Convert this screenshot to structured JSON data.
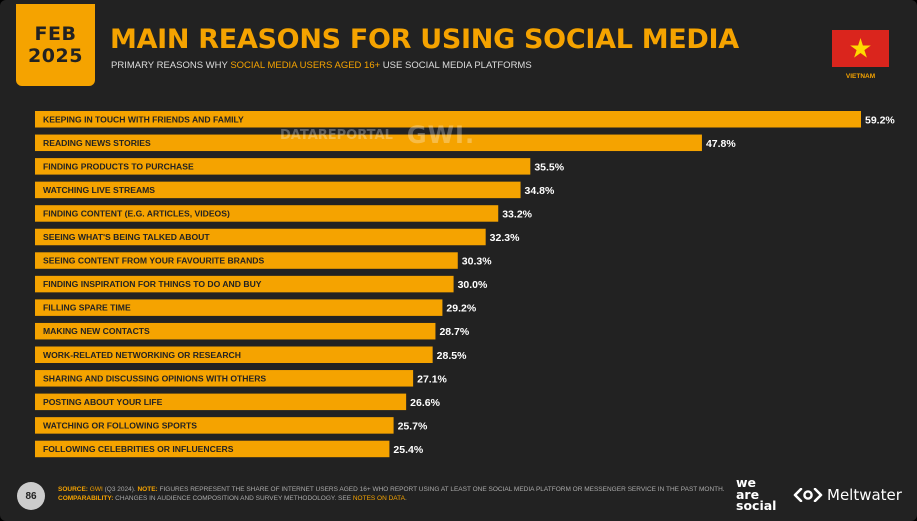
{
  "badge": {
    "month": "FEB",
    "year": "2025"
  },
  "title": "MAIN REASONS FOR USING SOCIAL MEDIA",
  "subtitle": {
    "pre": "PRIMARY REASONS WHY ",
    "highlight": "SOCIAL MEDIA USERS AGED 16+",
    "post": " USE SOCIAL MEDIA PLATFORMS"
  },
  "country": {
    "name": "VIETNAM",
    "flag_icon": "vietnam-flag-icon"
  },
  "watermark": {
    "left": "DATAREPORTAL",
    "right": "GWI."
  },
  "colors": {
    "accent": "#f5a300",
    "background": "#222222",
    "bar_text": "#222222",
    "value_text": "#ffffff"
  },
  "chart_data": {
    "type": "bar",
    "orientation": "horizontal",
    "categories": [
      "KEEPING IN TOUCH WITH FRIENDS AND FAMILY",
      "READING NEWS STORIES",
      "FINDING PRODUCTS TO PURCHASE",
      "WATCHING LIVE STREAMS",
      "FINDING CONTENT (E.G. ARTICLES, VIDEOS)",
      "SEEING WHAT'S BEING TALKED ABOUT",
      "SEEING CONTENT FROM YOUR FAVOURITE BRANDS",
      "FINDING INSPIRATION FOR THINGS TO DO AND BUY",
      "FILLING SPARE TIME",
      "MAKING NEW CONTACTS",
      "WORK-RELATED NETWORKING OR RESEARCH",
      "SHARING AND DISCUSSING OPINIONS WITH OTHERS",
      "POSTING ABOUT YOUR LIFE",
      "WATCHING OR FOLLOWING SPORTS",
      "FOLLOWING CELEBRITIES OR INFLUENCERS"
    ],
    "values": [
      59.2,
      47.8,
      35.5,
      34.8,
      33.2,
      32.3,
      30.3,
      30.0,
      29.2,
      28.7,
      28.5,
      27.1,
      26.6,
      25.7,
      25.4
    ],
    "value_labels": [
      "59.2%",
      "47.8%",
      "35.5%",
      "34.8%",
      "33.2%",
      "32.3%",
      "30.3%",
      "30.0%",
      "29.2%",
      "28.7%",
      "28.5%",
      "27.1%",
      "26.6%",
      "25.7%",
      "25.4%"
    ],
    "xlim": [
      0,
      59.2
    ],
    "grid": false
  },
  "footer": {
    "source_label": "SOURCE:",
    "source_org": "GWI",
    "source_period": " (Q3 2024). ",
    "note_label": "NOTE:",
    "note_text": " FIGURES REPRESENT THE SHARE OF INTERNET USERS AGED 16+ WHO REPORT USING AT LEAST ONE SOCIAL MEDIA PLATFORM OR MESSENGER SERVICE IN THE PAST MONTH.",
    "comparability_label": "COMPARABILITY:",
    "comparability_text": " CHANGES IN AUDIENCE COMPOSITION AND SURVEY METHODOLOGY. SEE ",
    "comparability_link": "NOTES ON DATA",
    "comparability_end": ".",
    "page_number": "86"
  },
  "brands": {
    "was_line1": "we",
    "was_line2": "are",
    "was_line3": "social",
    "meltwater": "Meltwater"
  }
}
